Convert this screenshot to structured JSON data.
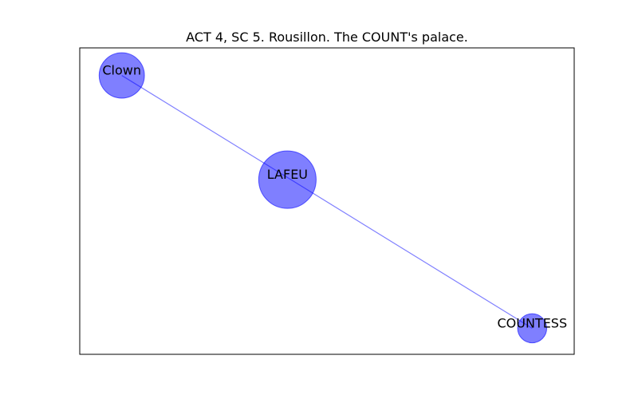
{
  "title": "ACT 4, SC 5. Rousillon. The COUNT's palace.",
  "colors": {
    "node_fill": "#0000ff",
    "node_fill_opacity": 0.5,
    "edge_color": "#0000ff",
    "frame": "#000000",
    "background": "#ffffff"
  },
  "chart_data": {
    "type": "network",
    "nodes": [
      {
        "id": "Clown",
        "label": "Clown",
        "x": 0.085,
        "y": 0.91,
        "weight": 2
      },
      {
        "id": "LAFEU",
        "label": "LAFEU",
        "x": 0.42,
        "y": 0.57,
        "weight": 4
      },
      {
        "id": "COUNTESS",
        "label": "COUNTESS",
        "x": 0.915,
        "y": 0.085,
        "weight": 0.4
      }
    ],
    "edges": [
      {
        "source": "Clown",
        "target": "COUNTESS"
      }
    ],
    "axes_visible": false
  }
}
